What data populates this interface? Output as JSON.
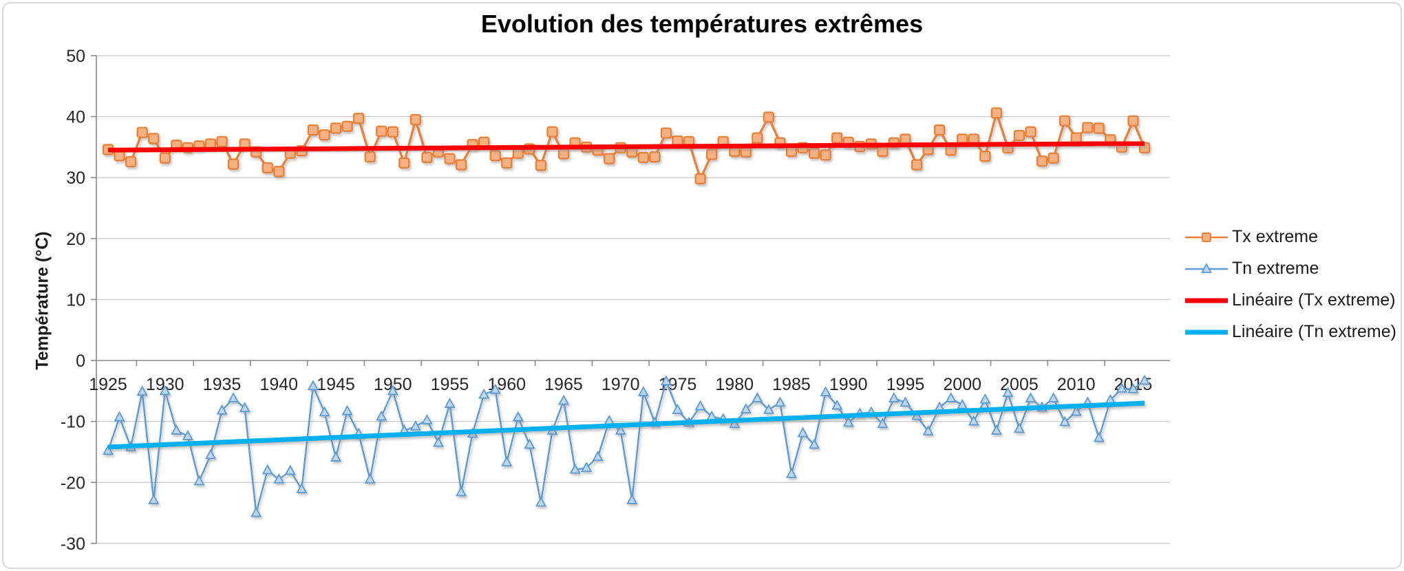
{
  "chart_data": {
    "type": "line",
    "title": "Evolution des températures extrêmes",
    "ylabel": "Température (°C)",
    "xlabel": "",
    "ylim": [
      -30,
      50
    ],
    "ytick_step": 10,
    "y_ticks": [
      50,
      40,
      30,
      20,
      10,
      0,
      -10,
      -20,
      -30
    ],
    "x_tick_labels": [
      "1925",
      "1930",
      "1935",
      "1940",
      "1945",
      "1950",
      "1955",
      "1960",
      "1965",
      "1970",
      "1975",
      "1980",
      "1985",
      "1990",
      "1995",
      "2000",
      "2005",
      "2010",
      "2015"
    ],
    "grid": true,
    "legend_position": "right",
    "x_start": 1925,
    "x_end": 2016,
    "years": [
      1925,
      1926,
      1927,
      1928,
      1929,
      1930,
      1931,
      1932,
      1933,
      1934,
      1935,
      1936,
      1937,
      1938,
      1939,
      1940,
      1941,
      1942,
      1943,
      1944,
      1945,
      1946,
      1947,
      1948,
      1949,
      1950,
      1951,
      1952,
      1953,
      1954,
      1955,
      1956,
      1957,
      1958,
      1959,
      1960,
      1961,
      1962,
      1963,
      1964,
      1965,
      1966,
      1967,
      1968,
      1969,
      1970,
      1971,
      1972,
      1973,
      1974,
      1975,
      1976,
      1977,
      1978,
      1979,
      1980,
      1981,
      1982,
      1983,
      1984,
      1985,
      1986,
      1987,
      1988,
      1989,
      1990,
      1991,
      1992,
      1993,
      1994,
      1995,
      1996,
      1997,
      1998,
      1999,
      2000,
      2001,
      2002,
      2003,
      2004,
      2005,
      2006,
      2007,
      2008,
      2009,
      2010,
      2011,
      2012,
      2013,
      2014,
      2015,
      2016
    ],
    "series": [
      {
        "name": "Tx extreme",
        "marker": "square",
        "color": "#ED7D31",
        "marker_fill": "#F4B183",
        "values": [
          34.6,
          33.6,
          32.6,
          37.4,
          36.4,
          33.2,
          35.3,
          34.9,
          35.2,
          35.5,
          35.9,
          32.2,
          35.5,
          34.2,
          31.6,
          31.0,
          34.0,
          34.4,
          37.8,
          37.0,
          38.1,
          38.4,
          39.7,
          33.4,
          37.6,
          37.5,
          32.4,
          39.5,
          33.3,
          34.2,
          33.1,
          32.1,
          35.4,
          35.8,
          33.6,
          32.4,
          34.0,
          34.7,
          32.0,
          37.5,
          33.9,
          35.7,
          35.0,
          34.5,
          33.1,
          34.9,
          34.2,
          33.3,
          33.4,
          37.3,
          36.0,
          35.9,
          29.8,
          33.8,
          35.9,
          34.3,
          34.2,
          36.5,
          39.9,
          35.7,
          34.3,
          34.9,
          34.0,
          33.7,
          36.5,
          35.8,
          35.1,
          35.5,
          34.3,
          35.7,
          36.3,
          32.1,
          34.6,
          37.8,
          34.5,
          36.3,
          36.3,
          33.5,
          40.6,
          34.9,
          36.9,
          37.5,
          32.7,
          33.2,
          39.3,
          36.5,
          38.2,
          38.1,
          36.2,
          35.0,
          39.3,
          34.9
        ]
      },
      {
        "name": "Tn extreme",
        "marker": "triangle",
        "color": "#5B9BD5",
        "marker_fill": "#BDD7EE",
        "values": [
          -14.8,
          -9.3,
          -14.2,
          -5.1,
          -22.9,
          -5.0,
          -11.5,
          -12.4,
          -19.8,
          -15.5,
          -8.2,
          -6.2,
          -7.8,
          -25.0,
          -18.0,
          -19.5,
          -18.1,
          -21.1,
          -4.2,
          -8.5,
          -15.9,
          -8.3,
          -12.0,
          -19.5,
          -9.2,
          -5.0,
          -11.5,
          -10.8,
          -9.8,
          -13.5,
          -7.1,
          -21.6,
          -12.0,
          -5.6,
          -4.8,
          -16.7,
          -9.3,
          -13.8,
          -23.3,
          -11.5,
          -6.6,
          -17.9,
          -17.6,
          -15.8,
          -9.9,
          -11.5,
          -22.9,
          -5.2,
          -10.2,
          -3.4,
          -8.1,
          -10.2,
          -7.5,
          -9.2,
          -9.6,
          -10.4,
          -8.0,
          -6.2,
          -8.1,
          -6.9,
          -18.6,
          -11.9,
          -13.8,
          -5.2,
          -7.4,
          -10.2,
          -8.7,
          -8.5,
          -10.4,
          -6.2,
          -6.9,
          -9.1,
          -11.6,
          -7.7,
          -6.2,
          -7.3,
          -10.0,
          -6.4,
          -11.5,
          -5.3,
          -11.2,
          -6.2,
          -7.7,
          -6.2,
          -10.1,
          -8.4,
          -6.9,
          -12.7,
          -6.5,
          -4.6,
          -4.7,
          -3.3
        ]
      }
    ],
    "trendlines": [
      {
        "name": "Linéaire (Tx extreme)",
        "color": "#FF0000",
        "start_value": 34.5,
        "end_value": 35.6
      },
      {
        "name": "Linéaire (Tn extreme)",
        "color": "#00B0F0",
        "start_value": -14.2,
        "end_value": -7.0
      }
    ]
  },
  "colors": {
    "gridline": "#c9c9c9",
    "axis_line": "#898989",
    "tick_text": "#262626",
    "title_text": "#000000",
    "border": "#d9d9d9"
  }
}
